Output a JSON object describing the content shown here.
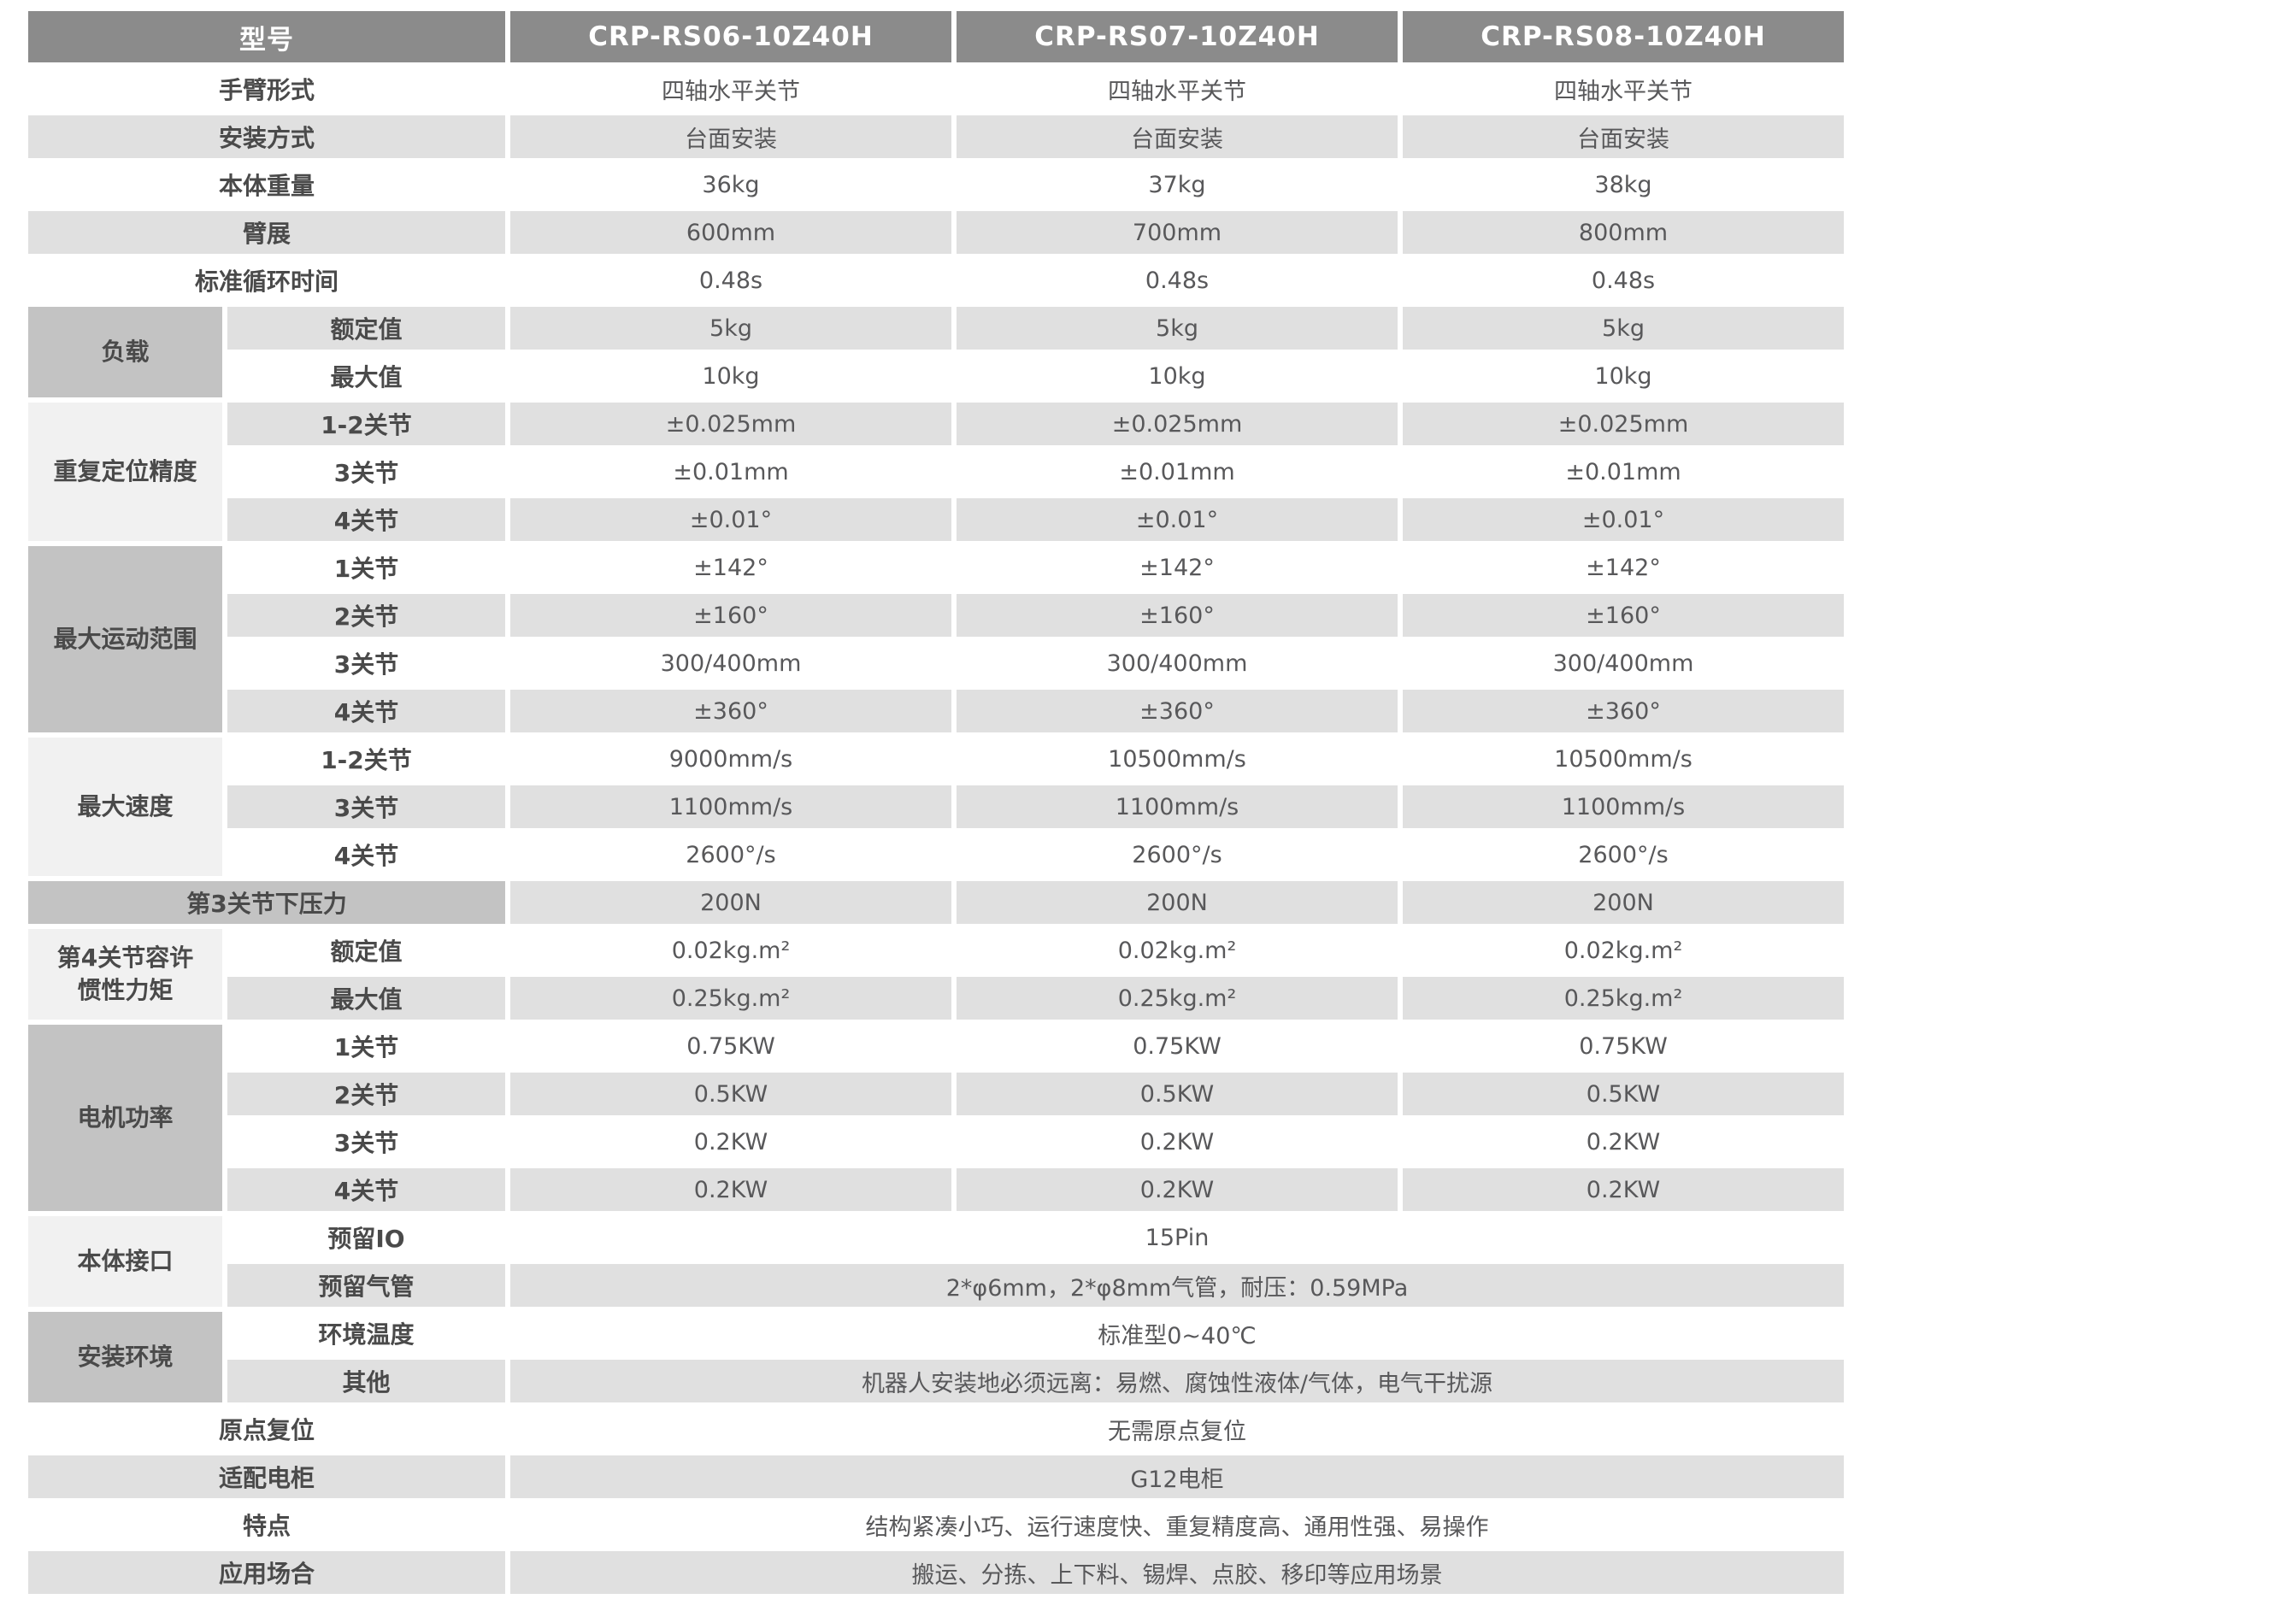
{
  "theme": {
    "page_bg": "#ffffff",
    "header_bg": "#8b8b8b",
    "header_text": "#ffffff",
    "group_dark_bg": "#c3c3c3",
    "group_light_bg": "#f1f1f1",
    "zebra_bg": "#e0e0e0",
    "label_text": "#4a4a4a",
    "value_text": "#58585a"
  },
  "header": {
    "model_label": "型号",
    "models": [
      "CRP-RS06-10Z40H",
      "CRP-RS07-10Z40H",
      "CRP-RS08-10Z40H"
    ]
  },
  "rows": [
    {
      "label": "手臂形式",
      "span": 2,
      "values": [
        "四轴水平关节",
        "四轴水平关节",
        "四轴水平关节"
      ]
    },
    {
      "label": "安装方式",
      "span": 2,
      "values": [
        "台面安装",
        "台面安装",
        "台面安装"
      ]
    },
    {
      "label": "本体重量",
      "span": 2,
      "values": [
        "36kg",
        "37kg",
        "38kg"
      ]
    },
    {
      "label": "臂展",
      "span": 2,
      "values": [
        "600mm",
        "700mm",
        "800mm"
      ]
    },
    {
      "label": "标准循环时间",
      "span": 2,
      "values": [
        "0.48s",
        "0.48s",
        "0.48s"
      ]
    },
    {
      "group": {
        "label": "负载",
        "span": 2,
        "tone": "dark"
      },
      "label": "额定值",
      "values": [
        "5kg",
        "5kg",
        "5kg"
      ]
    },
    {
      "label": "最大值",
      "values": [
        "10kg",
        "10kg",
        "10kg"
      ]
    },
    {
      "group": {
        "label": "重复定位精度",
        "span": 3,
        "tone": "light"
      },
      "label": "1-2关节",
      "values": [
        "±0.025mm",
        "±0.025mm",
        "±0.025mm"
      ]
    },
    {
      "label": "3关节",
      "values": [
        "±0.01mm",
        "±0.01mm",
        "±0.01mm"
      ]
    },
    {
      "label": "4关节",
      "values": [
        "±0.01°",
        "±0.01°",
        "±0.01°"
      ]
    },
    {
      "group": {
        "label": "最大运动范围",
        "span": 4,
        "tone": "dark"
      },
      "label": "1关节",
      "values": [
        "±142°",
        "±142°",
        "±142°"
      ]
    },
    {
      "label": "2关节",
      "values": [
        "±160°",
        "±160°",
        "±160°"
      ]
    },
    {
      "label": "3关节",
      "values": [
        "300/400mm",
        "300/400mm",
        "300/400mm"
      ]
    },
    {
      "label": "4关节",
      "values": [
        "±360°",
        "±360°",
        "±360°"
      ]
    },
    {
      "group": {
        "label": "最大速度",
        "span": 3,
        "tone": "light"
      },
      "label": "1-2关节",
      "values": [
        "9000mm/s",
        "10500mm/s",
        "10500mm/s"
      ]
    },
    {
      "label": "3关节",
      "values": [
        "1100mm/s",
        "1100mm/s",
        "1100mm/s"
      ]
    },
    {
      "label": "4关节",
      "values": [
        "2600°/s",
        "2600°/s",
        "2600°/s"
      ]
    },
    {
      "label": "第3关节下压力",
      "span": 2,
      "label_tone": "dark",
      "values": [
        "200N",
        "200N",
        "200N"
      ]
    },
    {
      "group": {
        "label": "第4关节容许\n惯性力矩",
        "span": 2,
        "tone": "light"
      },
      "label": "额定值",
      "values": [
        "0.02kg.m²",
        "0.02kg.m²",
        "0.02kg.m²"
      ]
    },
    {
      "label": "最大值",
      "values": [
        "0.25kg.m²",
        "0.25kg.m²",
        "0.25kg.m²"
      ]
    },
    {
      "group": {
        "label": "电机功率",
        "span": 4,
        "tone": "dark"
      },
      "label": "1关节",
      "values": [
        "0.75KW",
        "0.75KW",
        "0.75KW"
      ]
    },
    {
      "label": "2关节",
      "values": [
        "0.5KW",
        "0.5KW",
        "0.5KW"
      ]
    },
    {
      "label": "3关节",
      "values": [
        "0.2KW",
        "0.2KW",
        "0.2KW"
      ]
    },
    {
      "label": "4关节",
      "values": [
        "0.2KW",
        "0.2KW",
        "0.2KW"
      ]
    },
    {
      "group": {
        "label": "本体接口",
        "span": 2,
        "tone": "light"
      },
      "label": "预留IO",
      "merged": true,
      "values": [
        "15Pin"
      ]
    },
    {
      "label": "预留气管",
      "merged": true,
      "values": [
        "2*φ6mm，2*φ8mm气管，耐压：0.59MPa"
      ]
    },
    {
      "group": {
        "label": "安装环境",
        "span": 2,
        "tone": "dark"
      },
      "label": "环境温度",
      "merged": true,
      "values": [
        "标准型0~40℃"
      ]
    },
    {
      "label": "其他",
      "merged": true,
      "values": [
        "机器人安装地必须远离：易燃、腐蚀性液体/气体，电气干扰源"
      ]
    },
    {
      "label": "原点复位",
      "span": 2,
      "merged": true,
      "values": [
        "无需原点复位"
      ]
    },
    {
      "label": "适配电柜",
      "span": 2,
      "merged": true,
      "values": [
        "G12电柜"
      ]
    },
    {
      "label": "特点",
      "span": 2,
      "merged": true,
      "values": [
        "结构紧凑小巧、运行速度快、重复精度高、通用性强、易操作"
      ]
    },
    {
      "label": "应用场合",
      "span": 2,
      "merged": true,
      "values": [
        "搬运、分拣、上下料、锡焊、点胶、移印等应用场景"
      ]
    }
  ]
}
